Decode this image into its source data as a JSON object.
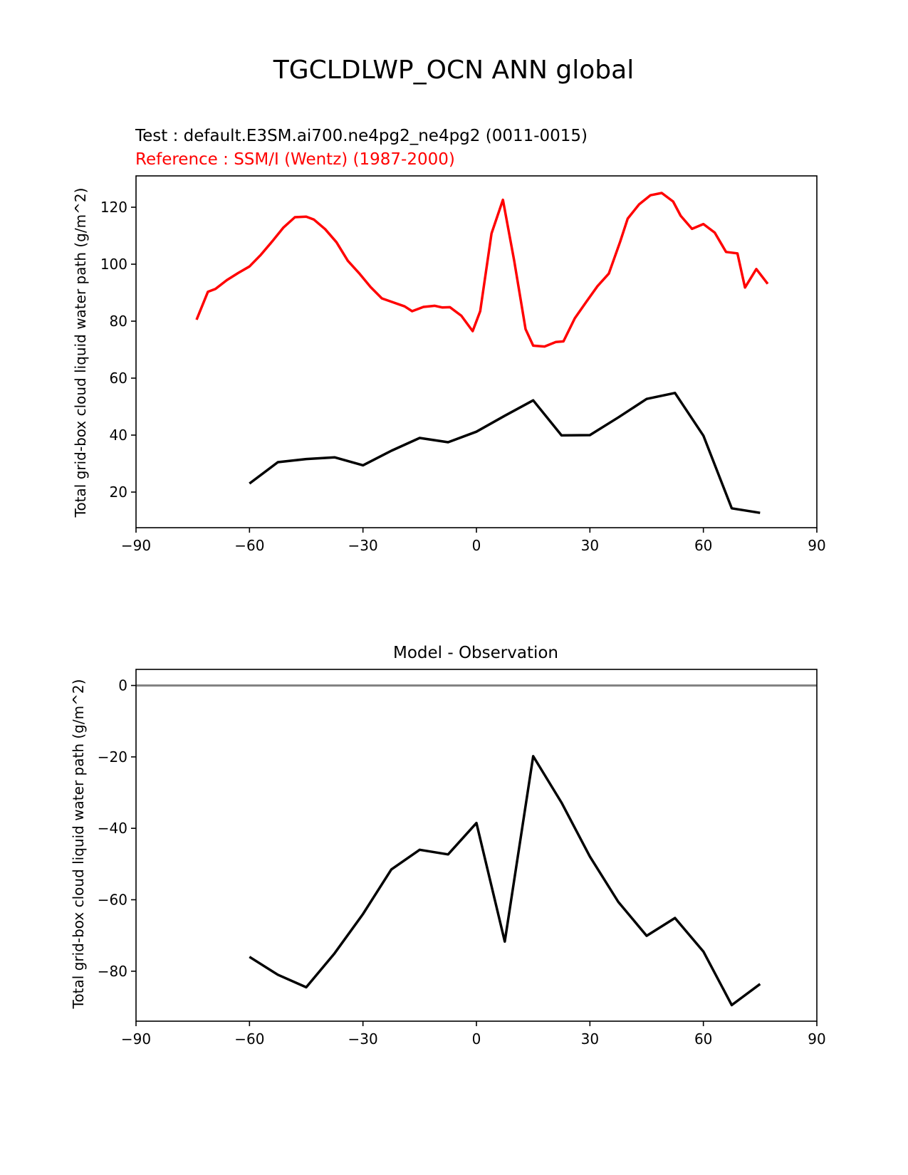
{
  "figure": {
    "suptitle": "TGCLDLWP_OCN ANN global"
  },
  "chart_data": [
    {
      "type": "line",
      "title_test": "Test : default.E3SM.ai700.ne4pg2_ne4pg2 (0011-0015)",
      "title_reference": "Reference : SSM/I (Wentz) (1987-2000)",
      "xlabel": "",
      "ylabel": "Total grid-box cloud liquid water path (g/m^2)",
      "xlim": [
        -90,
        90
      ],
      "ylim": [
        7.5,
        131
      ],
      "xticks": [
        -90,
        -60,
        -30,
        0,
        30,
        60,
        90
      ],
      "xtick_labels": [
        "−90",
        "−60",
        "−30",
        "0",
        "30",
        "60",
        "90"
      ],
      "yticks": [
        20,
        40,
        60,
        80,
        100,
        120
      ],
      "ytick_labels": [
        "20",
        "40",
        "60",
        "80",
        "100",
        "120"
      ],
      "series": [
        {
          "name": "Reference : SSM/I (Wentz) (1987-2000)",
          "color": "#ff0000",
          "x": [
            -74,
            -71,
            -69,
            -66,
            -63,
            -60,
            -57,
            -54,
            -51,
            -48,
            -45,
            -43,
            -40,
            -37,
            -34,
            -31,
            -28,
            -25,
            -22,
            -19,
            -17,
            -14,
            -11,
            -9,
            -7,
            -4,
            -1,
            1,
            4,
            7,
            10,
            13,
            15,
            18,
            21,
            23,
            26,
            29,
            32,
            35,
            38,
            40,
            43,
            46,
            49,
            52,
            54,
            57,
            60,
            63,
            66,
            69,
            71,
            74,
            77
          ],
          "y": [
            80.5,
            90.3,
            91.3,
            94.4,
            96.9,
            99.2,
            103.3,
            108,
            112.9,
            116.5,
            116.7,
            115.7,
            112.3,
            107.7,
            101.2,
            96.8,
            92,
            88,
            86.6,
            85.2,
            83.5,
            85,
            85.4,
            84.8,
            84.9,
            81.9,
            76.5,
            83.5,
            110.8,
            122.6,
            101.1,
            77.2,
            71.4,
            71.1,
            72.7,
            72.9,
            81,
            86.7,
            92.3,
            96.7,
            107.9,
            116,
            121,
            124.2,
            125,
            122,
            117,
            112.4,
            114.1,
            111.1,
            104.3,
            103.8,
            91.8,
            98.3,
            93.1
          ]
        },
        {
          "name": "Test : default.E3SM.ai700.ne4pg2_ne4pg2 (0011-0015)",
          "color": "#000000",
          "x": [
            -60,
            -52.5,
            -45,
            -37.5,
            -30,
            -22.5,
            -15,
            -7.5,
            0,
            7.5,
            15,
            22.5,
            30,
            37.5,
            45,
            52.5,
            60,
            67.5,
            75
          ],
          "y": [
            23,
            30.5,
            31.6,
            32.2,
            29.4,
            34.5,
            39,
            37.5,
            41.2,
            46.8,
            52.2,
            39.9,
            40,
            46.2,
            52.7,
            54.8,
            39.8,
            14.3,
            12.7
          ]
        }
      ]
    },
    {
      "type": "line",
      "title": "Model - Observation",
      "xlabel": "",
      "ylabel": "Total grid-box cloud liquid water path (g/m^2)",
      "xlim": [
        -90,
        90
      ],
      "ylim": [
        -94,
        4.5
      ],
      "xticks": [
        -90,
        -60,
        -30,
        0,
        30,
        60,
        90
      ],
      "xtick_labels": [
        "−90",
        "−60",
        "−30",
        "0",
        "30",
        "60",
        "90"
      ],
      "yticks": [
        0,
        -20,
        -40,
        -60,
        -80
      ],
      "ytick_labels": [
        "0",
        "−20",
        "−40",
        "−60",
        "−80"
      ],
      "zero_line_color": "#808080",
      "series": [
        {
          "name": "Model - Observation",
          "color": "#000000",
          "x": [
            -60,
            -52.5,
            -45,
            -37.5,
            -30,
            -22.5,
            -15,
            -7.5,
            0,
            7.5,
            15,
            22.5,
            30,
            37.5,
            45,
            52.5,
            60,
            67.5,
            75
          ],
          "y": [
            -76,
            -81,
            -84.5,
            -75,
            -64,
            -51.5,
            -46,
            -47.3,
            -38.5,
            -71.7,
            -19.8,
            -32.8,
            -47.9,
            -60.6,
            -70.1,
            -65.1,
            -74.5,
            -89.5,
            -83.6
          ]
        }
      ]
    }
  ]
}
